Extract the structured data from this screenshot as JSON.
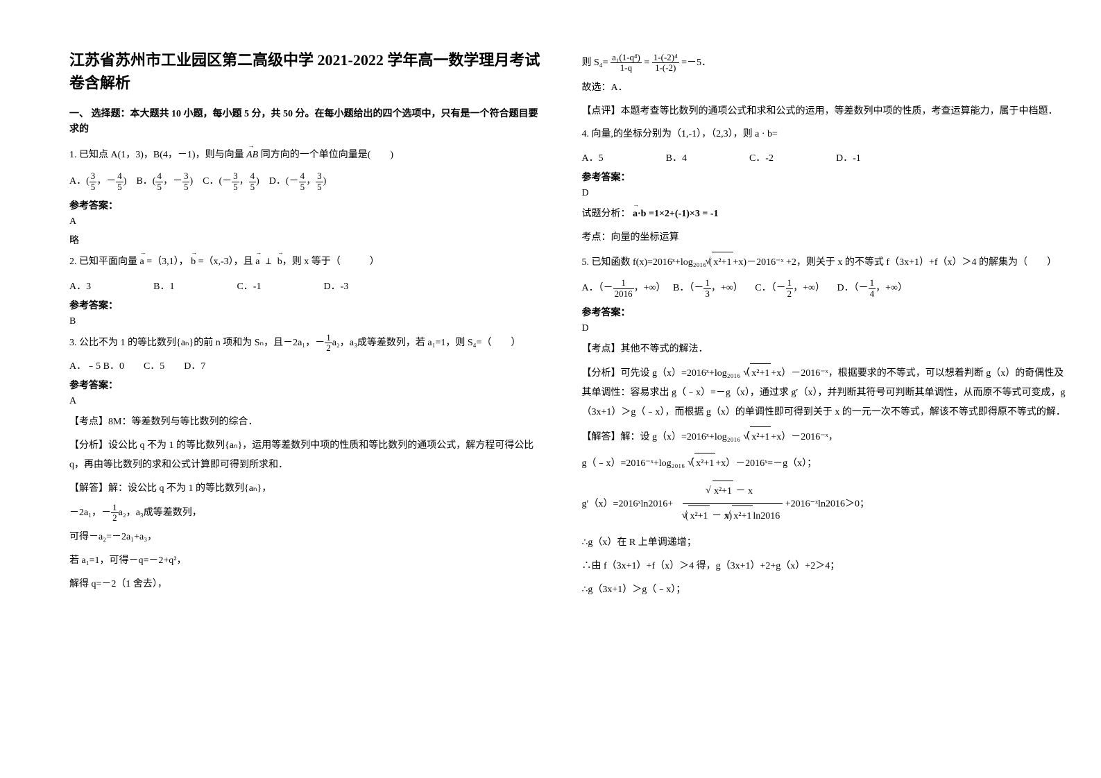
{
  "title": "江苏省苏州市工业园区第二高级中学 2021-2022 学年高一数学理月考试卷含解析",
  "section1_head": "一、 选择题：本大题共 10 小题，每小题 5 分，共 50 分。在每小题给出的四个选项中，只有是一个符合题目要求的",
  "q1": {
    "stem": "1. 已知点 A(1，3)，B(4，－1)，则与向量",
    "stem2": "同方向的一个单位向量是(　　)",
    "vec": "AB",
    "optA_pre": "A．(",
    "optA_n1": "3",
    "optA_d1": "5",
    "optA_mid": "，－",
    "optA_n2": "4",
    "optA_d2": "5",
    "optA_post": ")　B．(",
    "optB_n1": "4",
    "optB_d1": "5",
    "optB_mid": "，－",
    "optB_n2": "3",
    "optB_d2": "5",
    "optB_post": ")　C．(－",
    "optC_n1": "3",
    "optC_d1": "5",
    "optC_mid": "，",
    "optC_n2": "4",
    "optC_d2": "5",
    "optC_post": ")　D．(－",
    "optD_n1": "4",
    "optD_d1": "5",
    "optD_mid": "，",
    "optD_n2": "3",
    "optD_d2": "5",
    "optD_post": ")",
    "ans_label": "参考答案：",
    "ans": "A",
    "ans2": "略"
  },
  "q2": {
    "stem_pre": "2. 已知平面向量",
    "a": "a",
    "eq_a": " =（3,1），",
    "b": "b",
    "eq_b": " =（x,-3），且",
    "a2": "a",
    "perp": " ⊥ ",
    "b2": "b",
    "tail": "，则 x 等于（　　　）",
    "optA": "A．3",
    "optB": "B．1",
    "optC": "C．-1",
    "optD": "D．-3",
    "ans_label": "参考答案：",
    "ans": "B"
  },
  "q3": {
    "stem_pre": "3. 公比不为 1 的等比数列{aₙ}的前 n 项和为 Sₙ，且－2a₁，－",
    "frac_n": "1",
    "frac_d": "2",
    "stem_mid": "a₂，a₃成等差数列，若 a₁=1，则 S₄=（　　）",
    "opts": "A．﹣5   B．0　　C．5　　D．7",
    "ans_label": "参考答案：",
    "ans": "A",
    "kp": "【考点】8M：等差数列与等比数列的综合．",
    "fx": "【分析】设公比 q 不为 1 的等比数列{aₙ}，运用等差数列中项的性质和等比数列的通项公式，解方程可得公比 q，再由等比数列的求和公式计算即可得到所求和．",
    "jd1": "【解答】解：设公比 q 不为 1 的等比数列{aₙ}，",
    "jd2_pre": "－2a₁，－",
    "jd2_n": "1",
    "jd2_d": "2",
    "jd2_post": "a₂，a₃成等差数列，",
    "jd3": "可得－a₂=－2a₁+a₃，",
    "jd4": "若 a₁=1，可得－q=－2+q²，",
    "jd5": "解得 q=－2（1 舍去），"
  },
  "right": {
    "s4_pre": "则 S₄=",
    "s4_n1": "a₁(1-q⁴)",
    "s4_d1": "1-q",
    "s4_eq": " = ",
    "s4_n2": "1-(-2)⁴",
    "s4_d2": "1-(-2)",
    "s4_post": " =－5．",
    "gx": "故选：A．",
    "dp": "【点评】本题考查等比数列的通项公式和求和公式的运用，等差数列中项的性质，考查运算能力，属于中档题．",
    "q4": {
      "stem": "4. 向量,的坐标分别为（1,-1），（2,3），则 a · b=",
      "optA": "A．5",
      "optB": "B．4",
      "optC": "C．-2",
      "optD": "D．-1",
      "ans_label": "参考答案：",
      "ans": "D",
      "fx_pre": "试题分析：",
      "fx_vec": "a·b",
      "fx_post": " =1×2+(-1)×3 = -1",
      "kd": "考点：向量的坐标运算"
    },
    "q5": {
      "stem_pre": "5. 已知函数",
      "fx": "f(x)=2016ˣ+log₂₀₁₆",
      "paren_pre": "(",
      "sqrt": "x²+1",
      "paren_post": "+x)－2016⁻ˣ",
      "stem_post": "+2，则关于 x 的不等式 f（3x+1）+f（x）＞4 的解集为（　　）",
      "optA_pre": "A．（－",
      "optA_n": "1",
      "optA_d": "2016",
      "optA_post": "，+∞）",
      "optB_pre": "B．（－",
      "optB_n": "1",
      "optB_d": "3",
      "optB_post": "，+∞）",
      "optC_pre": "C．（－",
      "optC_n": "1",
      "optC_d": "2",
      "optC_post": "，+∞）",
      "optD_pre": "D．（－",
      "optD_n": "1",
      "optD_d": "4",
      "optD_post": "，+∞）",
      "ans_label": "参考答案：",
      "ans": "D",
      "kp": "【考点】其他不等式的解法．",
      "fx2": "【分析】可先设 g（x）=2016ˣ+log₂₀₁₆（",
      "fx2_sqrt": "x²+1",
      "fx2_post": "+x）－2016⁻ˣ，根据要求的不等式，可以想着判断 g（x）的奇偶性及其单调性：容易求出 g（﹣x）=－g（x），通过求 g′（x），并判断其符号可判断其单调性，从而原不等式可变成，g（3x+1）＞g（﹣x），而根据 g（x）的单调性即可得到关于 x 的一元一次不等式，解该不等式即得原不等式的解．",
      "jd1_pre": "【解答】解：设 g（x）=2016ˣ+log₂₀₁₆（",
      "jd1_sqrt": "x²+1",
      "jd1_post": "+x）－2016⁻ˣ，",
      "jd2_pre": "g（﹣x）=2016⁻ˣ+log₂₀₁₆（",
      "jd2_sqrt": "x²+1",
      "jd2_post": "+x）－2016ˣ=－g（x）；",
      "jd3_pre": "g′（x）=2016ˣln2016+",
      "jd3_frac_n_sqrt": "x²+1",
      "jd3_frac_n_post": " － x",
      "jd3_frac_d_pre": "(",
      "jd3_frac_d_sqrt1": "x²+1",
      "jd3_frac_d_mid": " － x)",
      "jd3_frac_d_sqrt2": "x²+1",
      "jd3_frac_d_post": "ln2016",
      "jd3_post": "+2016⁻ˣln2016＞0；",
      "jd4": "∴g（x）在 R 上单调递增；",
      "jd5": "∴由 f（3x+1）+f（x）＞4 得，g（3x+1）+2+g（x）+2＞4；",
      "jd6": "∴g（3x+1）＞g（﹣x）；"
    }
  }
}
